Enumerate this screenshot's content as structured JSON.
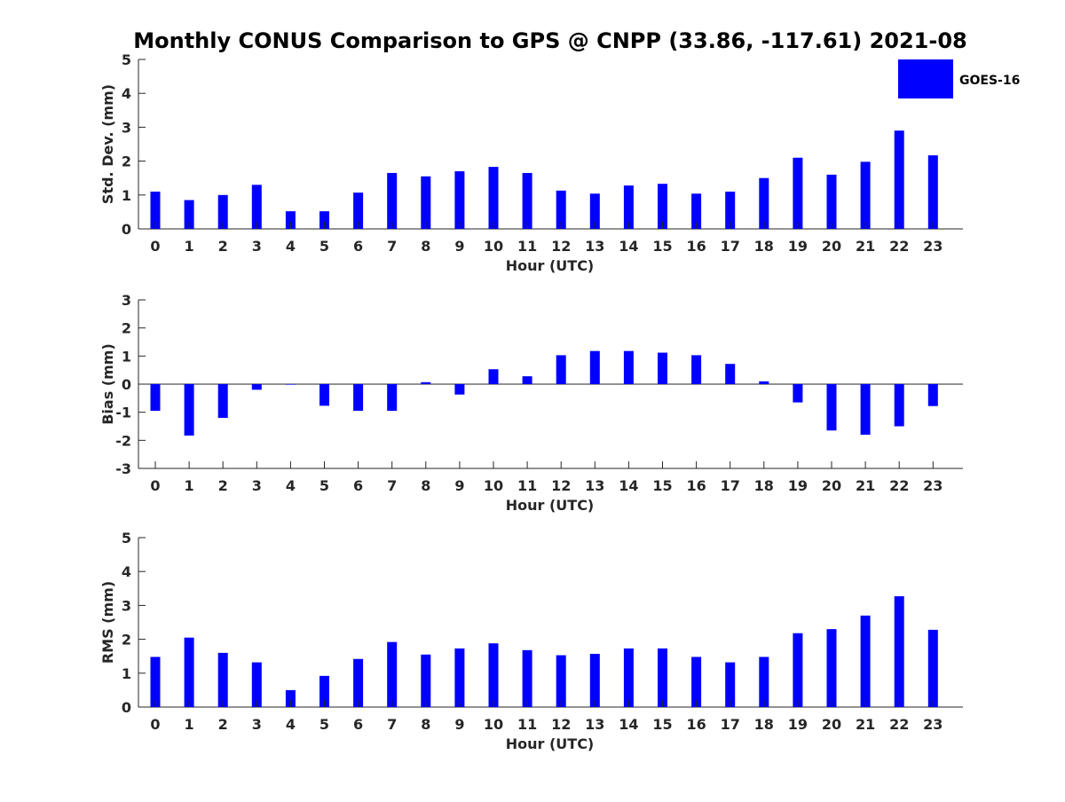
{
  "title": "Monthly CONUS Comparison to GPS @ CNPP (33.86, -117.61) 2021-08",
  "legend": {
    "label": "GOES-16",
    "color": "#0000ff"
  },
  "chart_data": [
    {
      "type": "bar",
      "ylabel": "Std. Dev. (mm)",
      "xlabel": "Hour (UTC)",
      "categories": [
        "0",
        "1",
        "2",
        "3",
        "4",
        "5",
        "6",
        "7",
        "8",
        "9",
        "10",
        "11",
        "12",
        "13",
        "14",
        "15",
        "16",
        "17",
        "18",
        "19",
        "20",
        "21",
        "22",
        "23"
      ],
      "series": [
        {
          "name": "GOES-16",
          "values": [
            1.1,
            0.85,
            1.0,
            1.3,
            0.52,
            0.52,
            1.07,
            1.65,
            1.55,
            1.7,
            1.83,
            1.65,
            1.13,
            1.04,
            1.28,
            1.33,
            1.04,
            1.1,
            1.5,
            2.1,
            1.6,
            1.98,
            2.9,
            2.17
          ]
        }
      ],
      "ylim": [
        0,
        5
      ],
      "yticks": [
        0,
        1,
        2,
        3,
        4,
        5
      ],
      "grid": false
    },
    {
      "type": "bar",
      "ylabel": "Bias (mm)",
      "xlabel": "Hour (UTC)",
      "categories": [
        "0",
        "1",
        "2",
        "3",
        "4",
        "5",
        "6",
        "7",
        "8",
        "9",
        "10",
        "11",
        "12",
        "13",
        "14",
        "15",
        "16",
        "17",
        "18",
        "19",
        "20",
        "21",
        "22",
        "23"
      ],
      "series": [
        {
          "name": "GOES-16",
          "values": [
            -0.95,
            -1.83,
            -1.2,
            -0.2,
            -0.02,
            -0.77,
            -0.95,
            -0.95,
            0.07,
            -0.37,
            0.53,
            0.28,
            1.03,
            1.18,
            1.18,
            1.12,
            1.03,
            0.72,
            0.1,
            -0.65,
            -1.65,
            -1.8,
            -1.5,
            -0.78
          ]
        }
      ],
      "ylim": [
        -3,
        3
      ],
      "yticks": [
        -3,
        -2,
        -1,
        0,
        1,
        2,
        3
      ],
      "grid": false
    },
    {
      "type": "bar",
      "ylabel": "RMS (mm)",
      "xlabel": "Hour (UTC)",
      "categories": [
        "0",
        "1",
        "2",
        "3",
        "4",
        "5",
        "6",
        "7",
        "8",
        "9",
        "10",
        "11",
        "12",
        "13",
        "14",
        "15",
        "16",
        "17",
        "18",
        "19",
        "20",
        "21",
        "22",
        "23"
      ],
      "series": [
        {
          "name": "GOES-16",
          "values": [
            1.48,
            2.05,
            1.6,
            1.32,
            0.5,
            0.92,
            1.42,
            1.92,
            1.55,
            1.73,
            1.88,
            1.68,
            1.53,
            1.57,
            1.73,
            1.73,
            1.48,
            1.32,
            1.48,
            2.18,
            2.3,
            2.7,
            3.27,
            2.28
          ]
        }
      ],
      "ylim": [
        0,
        5
      ],
      "yticks": [
        0,
        1,
        2,
        3,
        4,
        5
      ],
      "grid": false
    }
  ]
}
